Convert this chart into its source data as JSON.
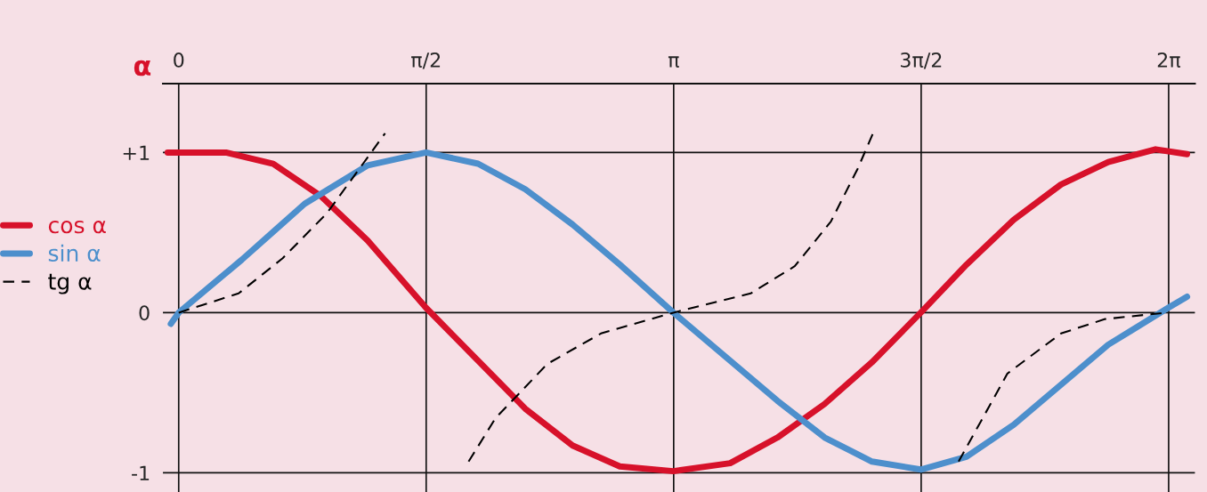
{
  "chart_data": {
    "type": "line",
    "xlabel": "α",
    "xlim": [
      -0.1,
      6.45
    ],
    "ylim": [
      -1.12,
      1.43
    ],
    "xticks": [
      0,
      {
        "value": 1.5708,
        "label": "π/2"
      },
      {
        "value": 3.1416,
        "label": "π"
      },
      {
        "value": 4.7124,
        "label": "3π/2"
      },
      {
        "value": 6.2832,
        "label": "2π"
      }
    ],
    "yticks": [
      {
        "value": -1,
        "label": "-1"
      },
      0,
      {
        "value": 1,
        "label": "+1"
      }
    ],
    "grid": true,
    "legend": "left",
    "series": [
      {
        "name": "cos α",
        "color": "#d7112a",
        "line_style": "solid",
        "x": [
          -0.07,
          0.3,
          0.6,
          0.9,
          1.2,
          1.57,
          1.9,
          2.2,
          2.5,
          2.8,
          3.14,
          3.5,
          3.8,
          4.1,
          4.4,
          4.71,
          5.0,
          5.3,
          5.6,
          5.9,
          6.2,
          6.4
        ],
        "values": [
          1.0,
          1.0,
          0.93,
          0.73,
          0.45,
          0.03,
          -0.3,
          -0.6,
          -0.83,
          -0.96,
          -0.99,
          -0.94,
          -0.78,
          -0.57,
          -0.31,
          0.0,
          0.3,
          0.58,
          0.8,
          0.94,
          1.02,
          0.99
        ]
      },
      {
        "name": "sin α",
        "color": "#4d8fcc",
        "line_style": "solid",
        "x": [
          -0.05,
          0,
          0.4,
          0.8,
          1.2,
          1.57,
          1.9,
          2.2,
          2.5,
          2.8,
          3.14,
          3.5,
          3.8,
          4.1,
          4.4,
          4.71,
          5.0,
          5.3,
          5.6,
          5.9,
          6.28,
          6.4
        ],
        "values": [
          -0.07,
          0,
          0.33,
          0.68,
          0.92,
          1.0,
          0.93,
          0.77,
          0.55,
          0.3,
          0,
          -0.3,
          -0.55,
          -0.78,
          -0.93,
          -0.98,
          -0.9,
          -0.7,
          -0.45,
          -0.2,
          0.03,
          0.1
        ]
      },
      {
        "name": "tg α",
        "color": "#000000",
        "line_style": "dashed",
        "x": [
          0,
          0.38,
          0.66,
          0.94,
          1.17,
          1.31,
          null,
          1.84,
          2.01,
          2.34,
          2.68,
          3.14,
          3.63,
          3.91,
          4.14,
          4.31,
          4.42,
          null,
          4.95,
          5.04,
          5.26,
          5.6,
          5.88,
          6.27
        ],
        "values": [
          0,
          0.12,
          0.34,
          0.62,
          0.93,
          1.12,
          null,
          -0.93,
          -0.66,
          -0.32,
          -0.13,
          0,
          0.12,
          0.29,
          0.57,
          0.9,
          1.15,
          null,
          -0.93,
          -0.77,
          -0.38,
          -0.13,
          -0.04,
          0
        ]
      }
    ]
  }
}
